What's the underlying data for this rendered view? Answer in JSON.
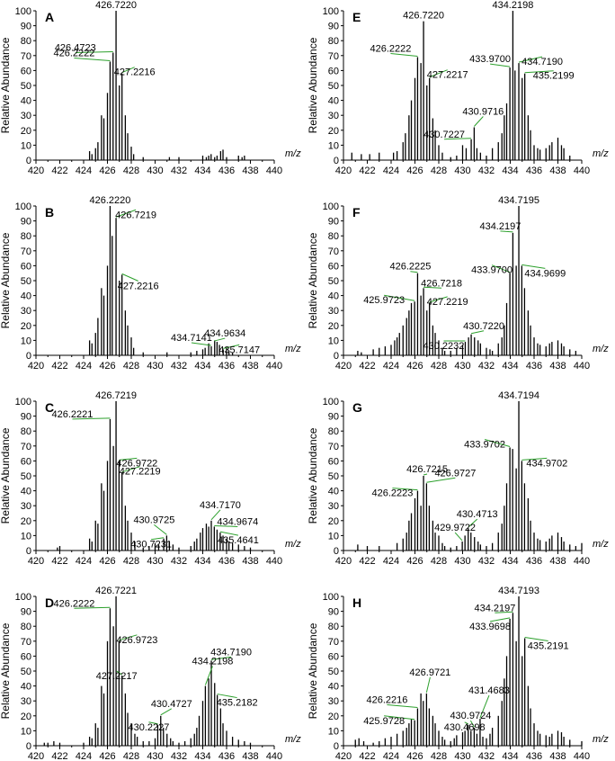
{
  "figure": {
    "ylabel": "Relative Abundance",
    "unit_label": "m/z",
    "x_ticks": [
      "420",
      "422",
      "424",
      "426",
      "428",
      "430",
      "432",
      "434",
      "436",
      "438",
      "440"
    ],
    "y_ticks": [
      "0",
      "10",
      "20",
      "30",
      "40",
      "50",
      "60",
      "70",
      "80",
      "90",
      "100"
    ]
  },
  "chart_data": [
    {
      "panel": "A",
      "type": "bar",
      "xlim": [
        420,
        440
      ],
      "ylim": [
        0,
        100
      ],
      "ylabel": "Relative Abundance",
      "xlabel": "m/z",
      "x": [
        424.5,
        424.7,
        425.0,
        425.2,
        425.5,
        425.7,
        426.0,
        426.2222,
        426.4723,
        426.722,
        427.0,
        427.2216,
        427.5,
        427.7,
        428.0,
        428.2,
        429.0,
        431.2,
        432.0,
        434.0,
        434.3,
        434.5,
        434.7,
        435.0,
        435.2,
        435.5,
        435.7,
        436.0,
        437.0,
        437.3,
        437.5
      ],
      "values": [
        6,
        4,
        8,
        12,
        30,
        28,
        45,
        66,
        72,
        100,
        50,
        58,
        30,
        18,
        9,
        4,
        2,
        2,
        2,
        3,
        2,
        3,
        4,
        2,
        3,
        6,
        7,
        2,
        3,
        2,
        3
      ],
      "labels": [
        {
          "text": "426.7220",
          "x": 426.722,
          "y": 100
        },
        {
          "text": "426.4723",
          "x": 426.4723,
          "y": 72
        },
        {
          "text": "426.2222",
          "x": 426.2222,
          "y": 66
        },
        {
          "text": "427.2216",
          "x": 427.2216,
          "y": 58
        }
      ]
    },
    {
      "panel": "B",
      "type": "bar",
      "xlim": [
        420,
        440
      ],
      "ylim": [
        0,
        100
      ],
      "ylabel": "Relative Abundance",
      "xlabel": "m/z",
      "x": [
        424.5,
        424.7,
        425.0,
        425.2,
        425.5,
        425.7,
        426.0,
        426.222,
        426.4,
        426.7219,
        427.0,
        427.2216,
        427.5,
        427.7,
        428.0,
        428.2,
        429.0,
        431.0,
        433.0,
        433.5,
        434.0,
        434.2,
        434.5,
        434.7141,
        435.0,
        435.2,
        435.4,
        435.7147,
        436.0,
        436.2,
        436.5
      ],
      "values": [
        10,
        8,
        15,
        25,
        45,
        40,
        60,
        100,
        80,
        92,
        50,
        54,
        30,
        20,
        12,
        5,
        2,
        2,
        2,
        3,
        4,
        5,
        8,
        6,
        10,
        9,
        7,
        4,
        5,
        3,
        2
      ],
      "labels": [
        {
          "text": "426.2220",
          "x": 426.222,
          "y": 100
        },
        {
          "text": "426.7219",
          "x": 426.7219,
          "y": 92
        },
        {
          "text": "427.2216",
          "x": 427.2216,
          "y": 54
        },
        {
          "text": "434.9634",
          "x": 434.9634,
          "y": 9
        },
        {
          "text": "434.7141",
          "x": 434.7141,
          "y": 6
        },
        {
          "text": "435.7147",
          "x": 435.7147,
          "y": 4
        }
      ]
    },
    {
      "panel": "C",
      "type": "bar",
      "xlim": [
        420,
        440
      ],
      "ylim": [
        0,
        100
      ],
      "ylabel": "Relative Abundance",
      "xlabel": "m/z",
      "x": [
        421.8,
        422.0,
        424.5,
        424.7,
        425.0,
        425.2,
        425.5,
        425.7,
        426.0,
        426.2221,
        426.5,
        426.7219,
        426.9722,
        427.2219,
        427.5,
        427.7,
        428.0,
        428.3,
        429.0,
        429.5,
        430.0,
        430.3,
        430.7231,
        430.9725,
        431.2,
        431.5,
        432.0,
        433.0,
        433.3,
        433.5,
        433.8,
        434.0,
        434.3,
        434.5,
        434.717,
        434.9674,
        435.2,
        435.4641,
        435.7,
        436.0,
        436.2,
        436.5,
        437.0,
        437.5,
        438.0
      ],
      "values": [
        2,
        3,
        8,
        6,
        20,
        18,
        45,
        40,
        60,
        88,
        70,
        100,
        60,
        52,
        30,
        20,
        12,
        6,
        2,
        3,
        5,
        4,
        8,
        10,
        6,
        4,
        2,
        3,
        6,
        8,
        12,
        15,
        18,
        16,
        20,
        16,
        14,
        12,
        10,
        8,
        6,
        5,
        4,
        3,
        2
      ],
      "labels": [
        {
          "text": "426.7219",
          "x": 426.7219,
          "y": 100
        },
        {
          "text": "426.2221",
          "x": 426.2221,
          "y": 88
        },
        {
          "text": "426.9722",
          "x": 426.9722,
          "y": 60
        },
        {
          "text": "427.2219",
          "x": 427.2219,
          "y": 52
        },
        {
          "text": "434.7170",
          "x": 434.717,
          "y": 20
        },
        {
          "text": "434.9674",
          "x": 434.9674,
          "y": 16
        },
        {
          "text": "430.9725",
          "x": 430.9725,
          "y": 10
        },
        {
          "text": "435.4641",
          "x": 435.4641,
          "y": 12
        },
        {
          "text": "430.7231",
          "x": 430.7231,
          "y": 8
        }
      ]
    },
    {
      "panel": "D",
      "type": "bar",
      "xlim": [
        420,
        440
      ],
      "ylim": [
        0,
        100
      ],
      "ylabel": "Relative Abundance",
      "xlabel": "m/z",
      "x": [
        420.7,
        421.0,
        421.5,
        422.0,
        424.0,
        424.5,
        424.7,
        425.0,
        425.2,
        425.5,
        425.7,
        426.0,
        426.2222,
        426.5,
        426.7221,
        426.9723,
        427.2217,
        427.5,
        427.7,
        428.0,
        428.3,
        428.5,
        429.0,
        429.5,
        430.0,
        430.2227,
        430.4727,
        430.7,
        431.0,
        431.3,
        431.5,
        432.0,
        432.5,
        433.0,
        433.3,
        433.5,
        433.7,
        434.0,
        434.2198,
        434.5,
        434.719,
        435.0,
        435.2182,
        435.5,
        435.7,
        436.0,
        436.5,
        437.0,
        437.5,
        438.0
      ],
      "values": [
        2,
        2,
        3,
        2,
        2,
        6,
        5,
        15,
        12,
        40,
        35,
        70,
        92,
        80,
        100,
        70,
        47,
        35,
        22,
        15,
        8,
        6,
        3,
        3,
        5,
        14,
        20,
        12,
        8,
        5,
        3,
        2,
        3,
        5,
        8,
        12,
        20,
        30,
        40,
        45,
        57,
        42,
        34,
        25,
        15,
        10,
        6,
        4,
        3,
        2
      ],
      "labels": [
        {
          "text": "426.7221",
          "x": 426.7221,
          "y": 100
        },
        {
          "text": "426.2222",
          "x": 426.2222,
          "y": 92
        },
        {
          "text": "426.9723",
          "x": 426.9723,
          "y": 70
        },
        {
          "text": "427.2217",
          "x": 427.2217,
          "y": 47
        },
        {
          "text": "434.7190",
          "x": 434.719,
          "y": 57
        },
        {
          "text": "434.2198",
          "x": 434.2198,
          "y": 40
        },
        {
          "text": "435.2182",
          "x": 435.2182,
          "y": 34
        },
        {
          "text": "430.4727",
          "x": 430.4727,
          "y": 20
        },
        {
          "text": "430.2227",
          "x": 430.2227,
          "y": 14
        }
      ]
    },
    {
      "panel": "E",
      "type": "bar",
      "xlim": [
        420,
        440
      ],
      "ylim": [
        0,
        100
      ],
      "ylabel": "Relative Abundance",
      "xlabel": "m/z",
      "x": [
        420.7,
        421.5,
        422.2,
        423.0,
        424.2,
        424.5,
        425.0,
        425.2,
        425.5,
        425.7,
        426.0,
        426.2222,
        426.5,
        426.722,
        427.0,
        427.2217,
        427.5,
        427.7,
        428.0,
        428.3,
        429.0,
        429.5,
        430.0,
        430.3,
        430.7227,
        430.9716,
        431.2,
        431.5,
        432.0,
        432.5,
        433.0,
        433.3,
        433.5,
        433.7,
        433.97,
        434.2198,
        434.4,
        434.719,
        435.0,
        435.2199,
        435.5,
        435.7,
        436.0,
        436.3,
        436.5,
        437.0,
        437.3,
        437.5,
        438.0,
        438.3,
        438.5,
        439.0
      ],
      "values": [
        5,
        4,
        4,
        5,
        5,
        6,
        12,
        18,
        30,
        40,
        55,
        69,
        65,
        93,
        50,
        55,
        28,
        20,
        10,
        5,
        2,
        3,
        10,
        8,
        14,
        22,
        8,
        5,
        3,
        8,
        12,
        18,
        30,
        38,
        62,
        100,
        60,
        65,
        55,
        58,
        30,
        20,
        10,
        8,
        7,
        8,
        10,
        12,
        15,
        10,
        8,
        3
      ],
      "labels": [
        {
          "text": "434.2198",
          "x": 434.2198,
          "y": 100
        },
        {
          "text": "426.7220",
          "x": 426.722,
          "y": 93
        },
        {
          "text": "426.2222",
          "x": 426.2222,
          "y": 69
        },
        {
          "text": "427.2217",
          "x": 427.2217,
          "y": 55
        },
        {
          "text": "433.9700",
          "x": 433.97,
          "y": 62
        },
        {
          "text": "434.7190",
          "x": 434.719,
          "y": 65
        },
        {
          "text": "435.2199",
          "x": 435.2199,
          "y": 58
        },
        {
          "text": "430.9716",
          "x": 430.9716,
          "y": 22
        },
        {
          "text": "430.7227",
          "x": 430.7227,
          "y": 14
        }
      ]
    },
    {
      "panel": "F",
      "type": "bar",
      "xlim": [
        420,
        440
      ],
      "ylim": [
        0,
        100
      ],
      "ylabel": "Relative Abundance",
      "xlabel": "m/z",
      "x": [
        421.2,
        421.5,
        422.5,
        423.0,
        423.5,
        424.0,
        424.3,
        424.5,
        424.7,
        425.0,
        425.3,
        425.5,
        425.7,
        425.9723,
        426.2225,
        426.5,
        426.7218,
        427.0,
        427.2219,
        427.5,
        427.7,
        428.0,
        428.3,
        428.5,
        429.0,
        429.5,
        430.0,
        430.2232,
        430.5,
        430.722,
        431.0,
        431.3,
        431.5,
        432.0,
        432.3,
        432.5,
        433.0,
        433.3,
        433.5,
        433.7,
        433.97,
        434.2197,
        434.5,
        434.7195,
        434.9699,
        435.2,
        435.5,
        435.7,
        436.0,
        436.3,
        436.5,
        437.0,
        437.3,
        437.5,
        438.0,
        438.3,
        438.5,
        439.0,
        439.5
      ],
      "values": [
        3,
        2,
        4,
        5,
        6,
        7,
        10,
        12,
        15,
        20,
        25,
        30,
        35,
        36,
        55,
        40,
        45,
        30,
        35,
        20,
        15,
        10,
        5,
        3,
        3,
        5,
        7,
        9,
        12,
        14,
        12,
        10,
        8,
        5,
        4,
        3,
        8,
        12,
        20,
        35,
        55,
        82,
        60,
        100,
        60,
        45,
        30,
        20,
        12,
        8,
        7,
        6,
        8,
        9,
        10,
        8,
        6,
        4,
        3
      ],
      "labels": [
        {
          "text": "434.7195",
          "x": 434.7195,
          "y": 100
        },
        {
          "text": "434.2197",
          "x": 434.2197,
          "y": 82
        },
        {
          "text": "433.9700",
          "x": 433.97,
          "y": 55
        },
        {
          "text": "434.9699",
          "x": 434.9699,
          "y": 60
        },
        {
          "text": "426.2225",
          "x": 426.2225,
          "y": 55
        },
        {
          "text": "426.7218",
          "x": 426.7218,
          "y": 45
        },
        {
          "text": "427.2219",
          "x": 427.2219,
          "y": 35
        },
        {
          "text": "425.9723",
          "x": 425.9723,
          "y": 36
        },
        {
          "text": "430.7220",
          "x": 430.722,
          "y": 14
        },
        {
          "text": "430.2232",
          "x": 430.2232,
          "y": 9
        }
      ]
    },
    {
      "panel": "G",
      "type": "bar",
      "xlim": [
        420,
        440
      ],
      "ylim": [
        0,
        100
      ],
      "ylabel": "Relative Abundance",
      "xlabel": "m/z",
      "x": [
        421.2,
        422.0,
        423.0,
        424.5,
        425.0,
        425.3,
        425.5,
        425.7,
        426.0,
        426.2223,
        426.5,
        426.7215,
        426.9727,
        427.2,
        427.5,
        427.7,
        428.0,
        428.3,
        428.5,
        429.0,
        429.5,
        429.9722,
        430.2,
        430.4713,
        430.7,
        431.0,
        431.3,
        431.5,
        432.0,
        432.5,
        433.0,
        433.3,
        433.5,
        433.7,
        433.9702,
        434.2,
        434.5,
        434.7194,
        434.9702,
        435.2,
        435.5,
        435.7,
        436.0,
        436.3,
        436.5,
        437.0,
        437.3,
        437.5,
        438.0,
        438.3,
        438.5,
        439.0,
        439.5,
        440.0
      ],
      "values": [
        4,
        3,
        3,
        5,
        8,
        12,
        20,
        25,
        35,
        40,
        30,
        50,
        45,
        30,
        20,
        12,
        10,
        5,
        3,
        2,
        3,
        6,
        10,
        15,
        12,
        9,
        6,
        4,
        3,
        5,
        12,
        18,
        30,
        45,
        69,
        68,
        55,
        100,
        60,
        45,
        35,
        20,
        12,
        8,
        7,
        6,
        8,
        10,
        12,
        9,
        6,
        4,
        3,
        5
      ],
      "labels": [
        {
          "text": "434.7194",
          "x": 434.7194,
          "y": 100
        },
        {
          "text": "433.9702",
          "x": 433.9702,
          "y": 69
        },
        {
          "text": "434.9702",
          "x": 434.9702,
          "y": 60
        },
        {
          "text": "426.7215",
          "x": 426.7215,
          "y": 50
        },
        {
          "text": "426.2223",
          "x": 426.2223,
          "y": 40
        },
        {
          "text": "426.9727",
          "x": 426.9727,
          "y": 45
        },
        {
          "text": "430.4713",
          "x": 430.4713,
          "y": 15
        },
        {
          "text": "429.9722",
          "x": 429.9722,
          "y": 6
        }
      ]
    },
    {
      "panel": "H",
      "type": "bar",
      "xlim": [
        420,
        440
      ],
      "ylim": [
        0,
        100
      ],
      "ylabel": "Relative Abundance",
      "xlabel": "m/z",
      "x": [
        421.0,
        421.3,
        421.7,
        422.5,
        423.0,
        423.5,
        424.0,
        424.5,
        425.0,
        425.3,
        425.5,
        425.7,
        425.9728,
        426.2216,
        426.5,
        426.7,
        426.9721,
        427.2,
        427.5,
        427.7,
        428.0,
        428.3,
        428.5,
        429.0,
        429.3,
        429.5,
        430.0,
        430.2,
        430.4698,
        430.7,
        430.9724,
        431.2,
        431.4683,
        431.7,
        432.0,
        432.3,
        432.5,
        433.0,
        433.3,
        433.5,
        433.7,
        433.9698,
        434.2197,
        434.5,
        434.7193,
        435.0,
        435.2191,
        435.5,
        435.7,
        436.0,
        436.3,
        436.5,
        437.0,
        437.3,
        437.5,
        438.0,
        438.3,
        438.5,
        439.0,
        440.0
      ],
      "values": [
        4,
        5,
        3,
        2,
        3,
        5,
        6,
        8,
        10,
        12,
        15,
        18,
        17,
        25,
        35,
        30,
        35,
        25,
        20,
        15,
        10,
        6,
        4,
        3,
        5,
        7,
        9,
        10,
        14,
        10,
        12,
        8,
        18,
        6,
        5,
        8,
        12,
        20,
        30,
        45,
        60,
        85,
        89,
        70,
        100,
        60,
        72,
        40,
        25,
        15,
        10,
        8,
        7,
        6,
        8,
        10,
        9,
        6,
        4,
        3
      ],
      "labels": [
        {
          "text": "434.7193",
          "x": 434.7193,
          "y": 100
        },
        {
          "text": "434.2197",
          "x": 434.2197,
          "y": 89
        },
        {
          "text": "433.9698",
          "x": 433.9698,
          "y": 85
        },
        {
          "text": "435.2191",
          "x": 435.2191,
          "y": 72
        },
        {
          "text": "426.9721",
          "x": 426.9721,
          "y": 35
        },
        {
          "text": "426.2216",
          "x": 426.2216,
          "y": 25
        },
        {
          "text": "425.9728",
          "x": 425.9728,
          "y": 17
        },
        {
          "text": "431.4683",
          "x": 431.4683,
          "y": 18
        },
        {
          "text": "430.9724",
          "x": 430.9724,
          "y": 12
        },
        {
          "text": "430.4698",
          "x": 430.4698,
          "y": 14
        }
      ]
    }
  ]
}
